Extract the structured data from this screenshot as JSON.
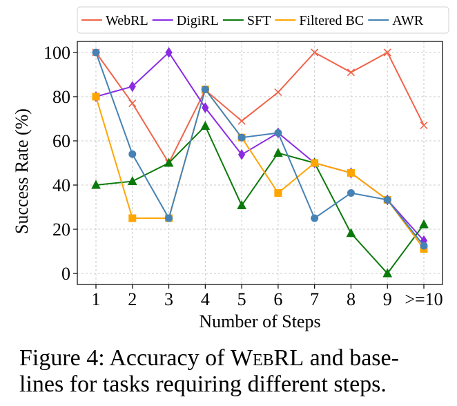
{
  "chart_data": {
    "type": "line",
    "title": "",
    "xlabel": "Number of Steps",
    "ylabel": "Success Rate (%)",
    "categories": [
      "1",
      "2",
      "3",
      "4",
      "5",
      "6",
      "7",
      "8",
      "9",
      ">=10"
    ],
    "ylim": [
      -5,
      105
    ],
    "yticks": [
      0,
      20,
      40,
      60,
      80,
      100
    ],
    "grid": true,
    "legend_position": "top",
    "series": [
      {
        "name": "WebRL",
        "color": "#f0644a",
        "marker": "x",
        "values": [
          100,
          77,
          50,
          83,
          69,
          82,
          100,
          91,
          100,
          67
        ]
      },
      {
        "name": "DigiRL",
        "color": "#8a2be2",
        "marker": "diamond",
        "values": [
          80,
          84.6,
          100,
          75,
          53.8,
          63.6,
          50,
          45.5,
          33.3,
          14.8
        ]
      },
      {
        "name": "SFT",
        "color": "#0a7a0a",
        "marker": "triangle",
        "values": [
          40,
          41.7,
          50,
          66.7,
          30.8,
          54.5,
          50,
          18.2,
          0,
          22.2
        ]
      },
      {
        "name": "Filtered BC",
        "color": "#ffa500",
        "marker": "square",
        "values": [
          80,
          25,
          25,
          83.3,
          61.5,
          36.4,
          50,
          45.5,
          33.3,
          11.1
        ]
      },
      {
        "name": "AWR",
        "color": "#4682b4",
        "marker": "circle",
        "values": [
          100,
          54,
          25,
          83.3,
          61.5,
          63.6,
          25,
          36.4,
          33.3,
          12.5
        ]
      }
    ]
  },
  "caption": {
    "prefix": "Figure 4: Accuracy of ",
    "name": "WebRL",
    "line1_rest": " and base-",
    "line2": "lines for tasks requiring different steps."
  }
}
